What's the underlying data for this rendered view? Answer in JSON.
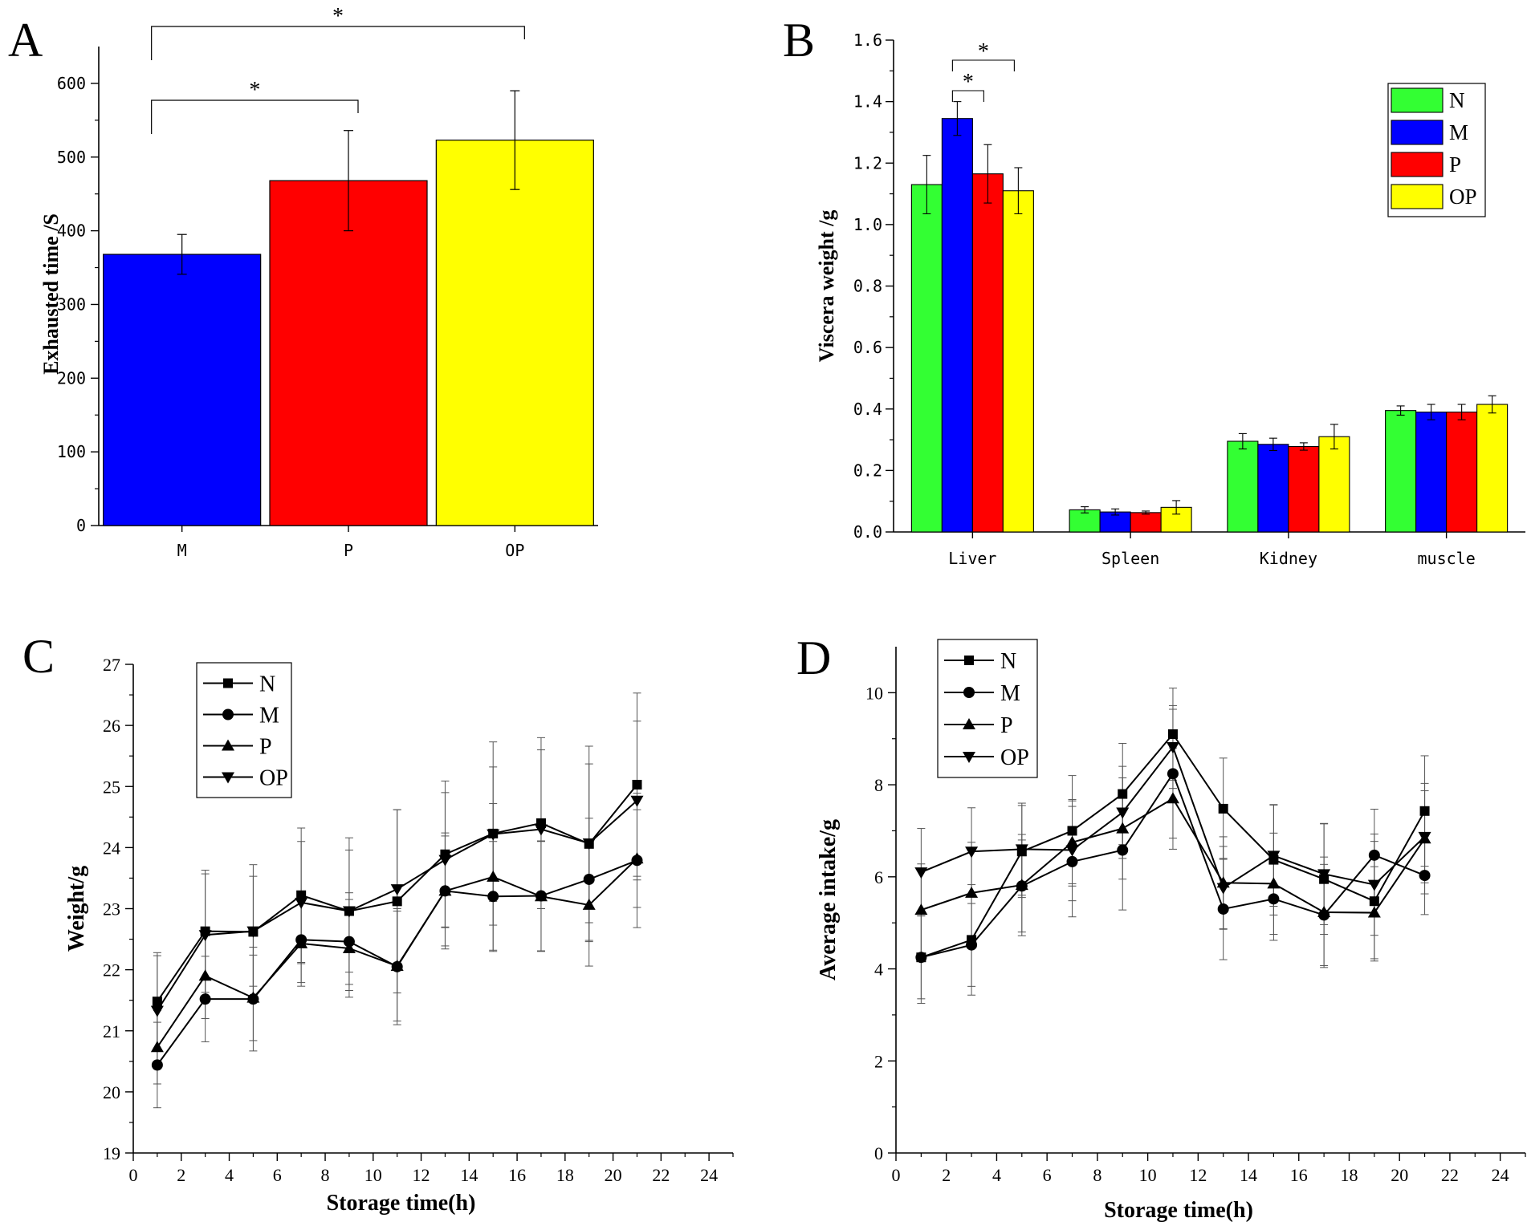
{
  "chart_data": [
    {
      "panel": "A",
      "type": "bar",
      "title": "",
      "xlabel": "",
      "ylabel": "Exhausted time /S",
      "ylim": [
        0,
        650
      ],
      "yticks": [
        0,
        100,
        200,
        300,
        400,
        500,
        600
      ],
      "categories": [
        "M",
        "P",
        "OP"
      ],
      "values": [
        368,
        468,
        523
      ],
      "errors": [
        27,
        68,
        67
      ],
      "colors": [
        "#0000ff",
        "#ff0000",
        "#ffff00"
      ],
      "significance": [
        {
          "from": "M",
          "to": "P",
          "label": "*"
        },
        {
          "from": "M",
          "to": "OP",
          "label": "*"
        }
      ]
    },
    {
      "panel": "B",
      "type": "bar",
      "title": "",
      "xlabel": "",
      "ylabel": "Viscera weight /g",
      "ylim": [
        0,
        1.6
      ],
      "yticks": [
        "0.0",
        "0.2",
        "0.4",
        "0.6",
        "0.8",
        "1.0",
        "1.2",
        "1.4",
        "1.6"
      ],
      "categories": [
        "Liver",
        "Spleen",
        "Kidney",
        "muscle"
      ],
      "series": [
        {
          "name": "N",
          "color": "#33ff33",
          "values": [
            1.13,
            0.072,
            0.295,
            0.395
          ],
          "errors": [
            0.095,
            0.01,
            0.025,
            0.015
          ]
        },
        {
          "name": "M",
          "color": "#0000ff",
          "values": [
            1.345,
            0.065,
            0.285,
            0.39
          ],
          "errors": [
            0.055,
            0.01,
            0.02,
            0.025
          ]
        },
        {
          "name": "P",
          "color": "#ff0000",
          "values": [
            1.165,
            0.063,
            0.278,
            0.39
          ],
          "errors": [
            0.095,
            0.005,
            0.012,
            0.025
          ]
        },
        {
          "name": "OP",
          "color": "#ffff00",
          "values": [
            1.11,
            0.08,
            0.31,
            0.415
          ],
          "errors": [
            0.075,
            0.022,
            0.04,
            0.028
          ]
        }
      ],
      "legend": "top-right",
      "significance": [
        {
          "category": "Liver",
          "from": "M",
          "to": "P",
          "label": "*"
        },
        {
          "category": "Liver",
          "from": "M",
          "to": "OP",
          "label": "*"
        }
      ]
    },
    {
      "panel": "C",
      "type": "line",
      "title": "",
      "xlabel": "Storage time(h)",
      "ylabel": "Weight/g",
      "xlim": [
        0,
        25
      ],
      "ylim": [
        19,
        27
      ],
      "xticks": [
        0,
        2,
        4,
        6,
        8,
        10,
        12,
        14,
        16,
        18,
        20,
        22,
        24
      ],
      "yticks": [
        19,
        20,
        21,
        22,
        23,
        24,
        25,
        26,
        27
      ],
      "x": [
        1,
        3,
        5,
        7,
        9,
        11,
        13,
        15,
        17,
        19,
        21
      ],
      "series": [
        {
          "name": "N",
          "marker": "square",
          "values": [
            21.48,
            22.63,
            22.62,
            23.22,
            22.96,
            23.12,
            23.89,
            24.23,
            24.4,
            24.06,
            25.03
          ],
          "errors": [
            0.8,
            1.0,
            1.1,
            1.1,
            1.2,
            1.5,
            1.2,
            1.5,
            1.4,
            1.6,
            1.5
          ]
        },
        {
          "name": "M",
          "marker": "circle",
          "values": [
            20.44,
            21.52,
            21.52,
            22.49,
            22.46,
            22.05,
            23.29,
            23.2,
            23.21,
            23.48,
            23.79
          ],
          "errors": [
            0.7,
            0.7,
            0.85,
            0.7,
            0.8,
            0.95,
            0.95,
            0.9,
            0.9,
            1.0,
            1.1
          ]
        },
        {
          "name": "P",
          "marker": "triangle-up",
          "values": [
            20.73,
            21.9,
            21.54,
            22.43,
            22.35,
            22.06,
            23.29,
            23.52,
            23.2,
            23.06,
            23.82
          ],
          "errors": [
            0.6,
            0.7,
            0.7,
            0.7,
            0.8,
            0.9,
            0.9,
            1.2,
            0.9,
            1.0,
            0.8
          ]
        },
        {
          "name": "OP",
          "marker": "triangle-down",
          "values": [
            21.33,
            22.57,
            22.63,
            23.1,
            22.96,
            23.32,
            23.8,
            24.22,
            24.3,
            24.07,
            24.77
          ],
          "errors": [
            0.9,
            1.0,
            0.9,
            1.0,
            1.0,
            1.3,
            1.1,
            1.1,
            1.3,
            1.3,
            1.3
          ]
        }
      ],
      "legend": "top-left"
    },
    {
      "panel": "D",
      "type": "line",
      "title": "",
      "xlabel": "Storage time(h)",
      "ylabel": "Average intake/g",
      "xlim": [
        0,
        25
      ],
      "ylim": [
        0,
        11
      ],
      "xticks": [
        0,
        2,
        4,
        6,
        8,
        10,
        12,
        14,
        16,
        18,
        20,
        22,
        24
      ],
      "yticks": [
        0,
        2,
        4,
        6,
        8,
        10
      ],
      "x": [
        1,
        3,
        5,
        7,
        9,
        11,
        13,
        15,
        17,
        19,
        21
      ],
      "series": [
        {
          "name": "N",
          "marker": "square",
          "values": [
            4.25,
            4.63,
            6.55,
            7.0,
            7.8,
            9.1,
            7.48,
            6.37,
            5.95,
            5.47,
            7.43
          ],
          "errors": [
            1.0,
            1.2,
            1.0,
            1.2,
            1.1,
            1.0,
            1.1,
            1.2,
            1.2,
            1.3,
            1.2
          ]
        },
        {
          "name": "M",
          "marker": "circle",
          "values": [
            4.25,
            4.52,
            5.8,
            6.33,
            6.58,
            8.24,
            5.3,
            5.52,
            5.17,
            6.47,
            6.03
          ],
          "errors": [
            0.9,
            0.9,
            1.0,
            1.2,
            1.3,
            1.4,
            1.1,
            0.9,
            1.1,
            1.0,
            0.85
          ]
        },
        {
          "name": "P",
          "marker": "triangle-up",
          "values": [
            5.28,
            5.65,
            5.82,
            6.75,
            7.05,
            7.7,
            5.87,
            5.85,
            5.23,
            5.22,
            6.83
          ],
          "errors": [
            1.0,
            1.1,
            1.1,
            0.9,
            1.1,
            1.1,
            1.0,
            1.1,
            1.2,
            1.0,
            1.2
          ]
        },
        {
          "name": "OP",
          "marker": "triangle-down",
          "values": [
            6.1,
            6.55,
            6.6,
            6.58,
            7.4,
            8.82,
            5.76,
            6.46,
            6.06,
            5.83,
            6.87
          ],
          "errors": [
            0.95,
            0.95,
            1.0,
            1.1,
            1.0,
            0.9,
            0.9,
            1.1,
            1.1,
            1.1,
            1.0
          ]
        }
      ],
      "legend": "top-left"
    }
  ]
}
